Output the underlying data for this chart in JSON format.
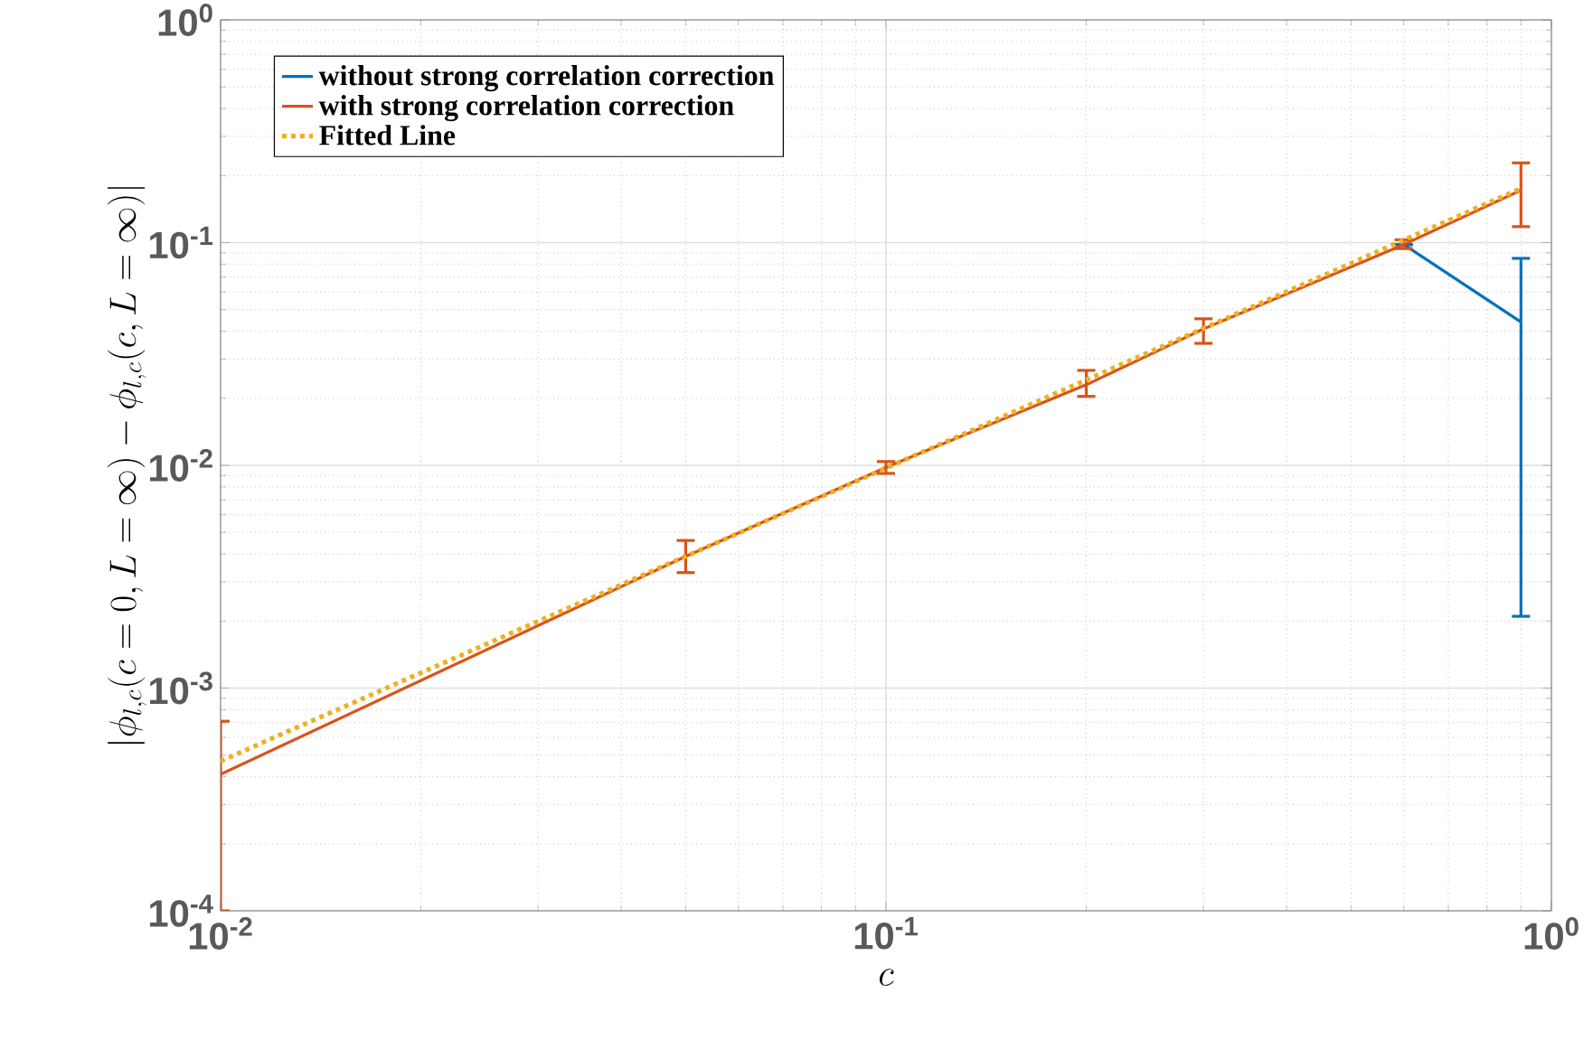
{
  "chart_data": {
    "type": "line",
    "xlabel": "c",
    "ylabel": "|\\phi_{l,c}(c=0,L=\\infty)-\\phi_{l,c}(c,L=\\infty)|",
    "x": [
      0.01,
      0.05,
      0.1,
      0.2,
      0.3,
      0.6,
      0.9
    ],
    "series": [
      {
        "name": "without strong correlation correction",
        "color": "#0072bd",
        "values": [
          null,
          null,
          null,
          null,
          null,
          0.098,
          0.044
        ],
        "errors": [
          null,
          null,
          null,
          null,
          null,
          null,
          [
            0.0021,
            0.085
          ]
        ]
      },
      {
        "name": "with strong correlation correction",
        "color": "#d95319",
        "values": [
          0.00041,
          0.0039,
          0.0098,
          0.023,
          0.041,
          0.098,
          0.172
        ],
        "errors": [
          [
            0.0001,
            0.00071
          ],
          [
            0.0033,
            0.0046
          ],
          [
            0.0092,
            0.0104
          ],
          [
            0.0204,
            0.0267
          ],
          [
            0.0353,
            0.0455
          ],
          [
            0.094,
            0.103
          ],
          [
            0.118,
            0.228
          ]
        ]
      },
      {
        "name": "Fitted Line",
        "color": "#edb120",
        "x": [
          0.01,
          0.9
        ],
        "values": [
          0.00047,
          0.175
        ],
        "line_style": "dotted"
      }
    ],
    "log": "xy",
    "xlim": [
      0.01,
      1
    ],
    "ylim": [
      0.0001,
      1
    ],
    "xticks": [
      {
        "value": 0.01,
        "label": "10$^{-2}$"
      },
      {
        "value": 0.1,
        "label": "10$^{-1}$"
      },
      {
        "value": 1,
        "label": "10$^{0}$"
      }
    ],
    "yticks": [
      {
        "value": 0.0001,
        "label": "10$^{-4}$"
      },
      {
        "value": 0.001,
        "label": "10$^{-3}$"
      },
      {
        "value": 0.01,
        "label": "10$^{-2}$"
      },
      {
        "value": 0.1,
        "label": "10$^{-1}$"
      },
      {
        "value": 1,
        "label": "10$^{0}$"
      }
    ],
    "grid": true,
    "legend": "top left",
    "marker": "none"
  }
}
